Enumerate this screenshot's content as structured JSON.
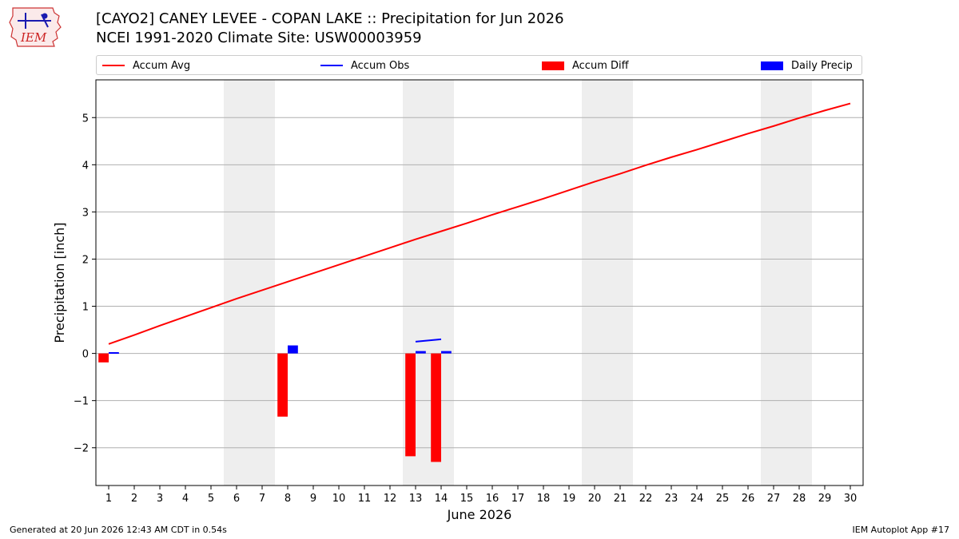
{
  "header": {
    "title_line1": "[CAYO2] CANEY LEVEE - COPAN LAKE :: Precipitation for Jun 2026",
    "title_line2": "NCEI 1991-2020 Climate Site: USW00003959",
    "logo_text": "IEM"
  },
  "legend": {
    "items": [
      {
        "label": "Accum Avg",
        "kind": "line",
        "color": "#ff0000"
      },
      {
        "label": "Accum Obs",
        "kind": "line",
        "color": "#0000ff"
      },
      {
        "label": "Accum Diff",
        "kind": "box",
        "color": "#ff0000"
      },
      {
        "label": "Daily Precip",
        "kind": "box",
        "color": "#0000ff"
      }
    ]
  },
  "footer": {
    "generated": "Generated at 20 Jun 2026 12:43 AM CDT in 0.54s",
    "app": "IEM Autoplot App #17"
  },
  "chart_data": {
    "type": "bar",
    "xlabel": "June 2026",
    "ylabel": "Precipitation [inch]",
    "xlim": [
      0.5,
      30.5
    ],
    "ylim": [
      -2.8,
      5.8
    ],
    "x_ticks": [
      1,
      2,
      3,
      4,
      5,
      6,
      7,
      8,
      9,
      10,
      11,
      12,
      13,
      14,
      15,
      16,
      17,
      18,
      19,
      20,
      21,
      22,
      23,
      24,
      25,
      26,
      27,
      28,
      29,
      30
    ],
    "y_ticks": [
      -2,
      -1,
      0,
      1,
      2,
      3,
      4,
      5
    ],
    "grid": "horizontal",
    "weekend_shading": [
      [
        6,
        7
      ],
      [
        13,
        14
      ],
      [
        20,
        21
      ],
      [
        27,
        28
      ]
    ],
    "shade_color": "#eeeeee",
    "series": [
      {
        "name": "Accum Avg",
        "kind": "line",
        "color": "#ff0000",
        "x": [
          1,
          2,
          3,
          4,
          5,
          6,
          7,
          8,
          9,
          10,
          11,
          12,
          13,
          14,
          15,
          16,
          17,
          18,
          19,
          20,
          21,
          22,
          23,
          24,
          25,
          26,
          27,
          28,
          29,
          30
        ],
        "values": [
          0.2,
          0.39,
          0.59,
          0.78,
          0.97,
          1.16,
          1.34,
          1.52,
          1.7,
          1.88,
          2.06,
          2.24,
          2.42,
          2.59,
          2.76,
          2.94,
          3.11,
          3.28,
          3.46,
          3.64,
          3.81,
          3.99,
          4.16,
          4.32,
          4.49,
          4.66,
          4.82,
          4.99,
          5.15,
          5.3
        ]
      },
      {
        "name": "Accum Obs",
        "kind": "line",
        "color": "#0000ff",
        "segments": [
          {
            "x": [
              1,
              1.4
            ],
            "values": [
              0.01,
              0.01
            ]
          },
          {
            "x": [
              13,
              14
            ],
            "values": [
              0.25,
              0.3
            ]
          }
        ]
      },
      {
        "name": "Accum Diff",
        "kind": "bar",
        "color": "#ff0000",
        "x": [
          1,
          8,
          13,
          14
        ],
        "values": [
          -0.19,
          -1.34,
          -2.18,
          -2.3
        ]
      },
      {
        "name": "Daily Precip",
        "kind": "bar",
        "color": "#0000ff",
        "x": [
          1,
          8,
          13,
          14
        ],
        "values": [
          0.01,
          0.17,
          0.05,
          0.05
        ]
      }
    ]
  }
}
